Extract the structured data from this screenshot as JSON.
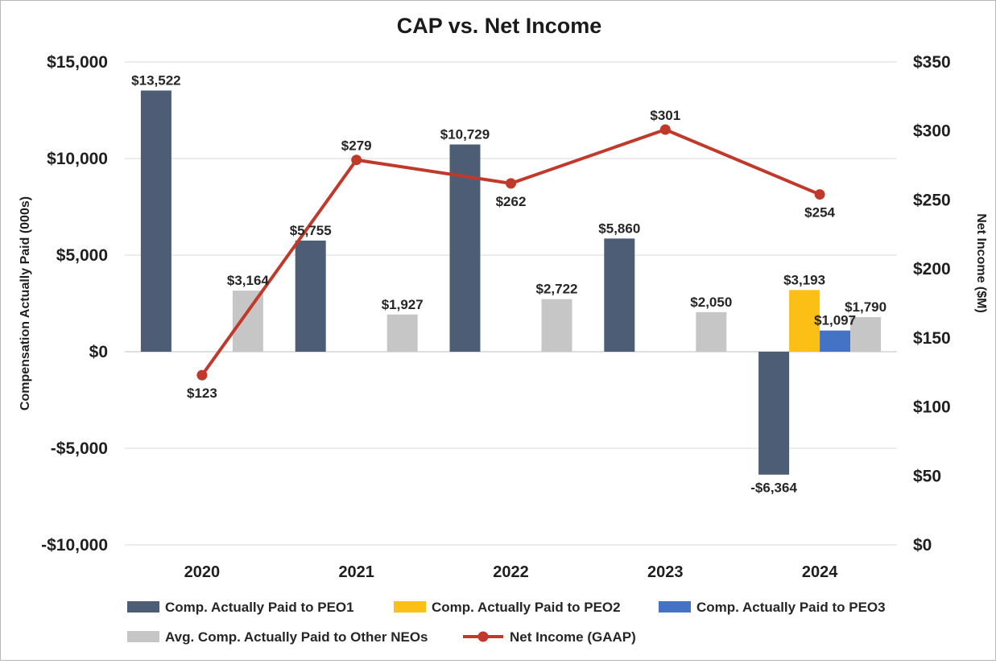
{
  "chart_data": {
    "type": "bar+line",
    "title": "CAP vs. Net Income",
    "categories": [
      "2020",
      "2021",
      "2022",
      "2023",
      "2024"
    ],
    "ylabel": "Compensation Actually Paid (000s)",
    "y2label": "Net Income ($M)",
    "ylim": [
      -10000,
      15000
    ],
    "y2lim": [
      0,
      350
    ],
    "yticks": [
      15000,
      10000,
      5000,
      0,
      -5000,
      -10000
    ],
    "ytick_labels": [
      "$15,000",
      "$10,000",
      "$5,000",
      "$0",
      "-$5,000",
      "-$10,000"
    ],
    "y2ticks": [
      350,
      300,
      250,
      200,
      150,
      100,
      50,
      0
    ],
    "y2tick_labels": [
      "$350",
      "$300",
      "$250",
      "$200",
      "$150",
      "$100",
      "$50",
      "$0"
    ],
    "grid": true,
    "legend_position": "bottom",
    "series": [
      {
        "name": "Comp. Actually Paid to PEO1",
        "kind": "bar",
        "axis": "left",
        "color": "#4e5d76",
        "values": [
          13522,
          5755,
          10729,
          5860,
          -6364
        ],
        "labels": [
          "$13,522",
          "$5,755",
          "$10,729",
          "$5,860",
          "-$6,364"
        ]
      },
      {
        "name": "Comp. Actually Paid to PEO2",
        "kind": "bar",
        "axis": "left",
        "color": "#fbbf16",
        "values": [
          null,
          null,
          null,
          null,
          3193
        ],
        "labels": [
          "",
          "",
          "",
          "",
          "$3,193"
        ]
      },
      {
        "name": "Comp. Actually Paid to PEO3",
        "kind": "bar",
        "axis": "left",
        "color": "#4472c4",
        "values": [
          null,
          null,
          null,
          null,
          1097
        ],
        "labels": [
          "",
          "",
          "",
          "",
          "$1,097"
        ]
      },
      {
        "name": "Avg. Comp. Actually Paid to Other NEOs",
        "kind": "bar",
        "axis": "left",
        "color": "#c6c6c6",
        "values": [
          3164,
          1927,
          2722,
          2050,
          1790
        ],
        "labels": [
          "$3,164",
          "$1,927",
          "$2,722",
          "$2,050",
          "$1,790"
        ]
      },
      {
        "name": "Net Income (GAAP)",
        "kind": "line",
        "axis": "right",
        "color": "#c0392b",
        "values": [
          123,
          279,
          262,
          301,
          254
        ],
        "labels": [
          "$123",
          "$279",
          "$262",
          "$301",
          "$254"
        ]
      }
    ]
  }
}
